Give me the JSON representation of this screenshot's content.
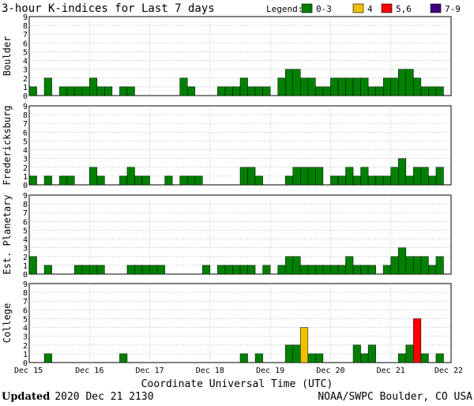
{
  "header": {
    "title": "3-hour K-indices for Last 7 days",
    "legend_label": "Legend:",
    "legend": [
      {
        "label": "0-3",
        "color": "#008000"
      },
      {
        "label": "4",
        "color": "#f0c000"
      },
      {
        "label": "5,6",
        "color": "#ff0000"
      },
      {
        "label": "7-9",
        "color": "#400080"
      }
    ]
  },
  "footer": {
    "updated_label": "Updated",
    "updated_value": "2020 Dec 21 2130",
    "credit": "NOAA/SWPC Boulder, CO USA"
  },
  "chart_data": {
    "type": "bar",
    "xlabel": "Coordinate Universal Time (UTC)",
    "x_ticks": [
      "Dec 15",
      "Dec 16",
      "Dec 17",
      "Dec 18",
      "Dec 19",
      "Dec 20",
      "Dec 21",
      "Dec 22"
    ],
    "ylim": [
      0,
      9
    ],
    "y_ticks": [
      "0",
      "1",
      "2",
      "3",
      "4",
      "5",
      "6",
      "7",
      "8",
      "9"
    ],
    "grid": true,
    "series": [
      {
        "name": "Boulder",
        "values": [
          1,
          0,
          2,
          0,
          1,
          1,
          1,
          1,
          2,
          1,
          1,
          0,
          1,
          1,
          0,
          0,
          0,
          0,
          0,
          0,
          2,
          1,
          0,
          0,
          0,
          1,
          1,
          1,
          2,
          1,
          1,
          1,
          0,
          2,
          3,
          3,
          2,
          2,
          1,
          1,
          2,
          2,
          2,
          2,
          2,
          1,
          1,
          2,
          2,
          3,
          3,
          2,
          1,
          1,
          1,
          0
        ]
      },
      {
        "name": "Fredericksburg",
        "values": [
          1,
          0,
          1,
          0,
          1,
          1,
          0,
          0,
          2,
          1,
          0,
          0,
          1,
          2,
          1,
          1,
          0,
          0,
          1,
          0,
          1,
          1,
          1,
          0,
          0,
          0,
          0,
          0,
          2,
          2,
          1,
          0,
          0,
          0,
          1,
          2,
          2,
          2,
          2,
          0,
          1,
          1,
          2,
          1,
          2,
          1,
          1,
          1,
          2,
          3,
          1,
          2,
          2,
          1,
          2,
          0
        ]
      },
      {
        "name": "Est. Planetary",
        "values": [
          2,
          0,
          1,
          0,
          0,
          0,
          1,
          1,
          1,
          1,
          0,
          0,
          0,
          1,
          1,
          1,
          1,
          1,
          0,
          0,
          0,
          0,
          0,
          1,
          0,
          1,
          1,
          1,
          1,
          1,
          0,
          1,
          0,
          1,
          2,
          2,
          1,
          1,
          1,
          1,
          1,
          1,
          2,
          1,
          1,
          1,
          0,
          1,
          2,
          3,
          2,
          2,
          2,
          1,
          2,
          0
        ]
      },
      {
        "name": "College",
        "values": [
          0,
          0,
          1,
          0,
          0,
          0,
          0,
          0,
          0,
          0,
          0,
          0,
          1,
          0,
          0,
          0,
          0,
          0,
          0,
          0,
          0,
          0,
          0,
          0,
          0,
          0,
          0,
          0,
          1,
          0,
          1,
          0,
          0,
          0,
          2,
          2,
          4,
          1,
          1,
          0,
          0,
          0,
          0,
          2,
          1,
          2,
          0,
          0,
          0,
          1,
          2,
          5,
          1,
          0,
          1,
          0
        ]
      }
    ]
  }
}
